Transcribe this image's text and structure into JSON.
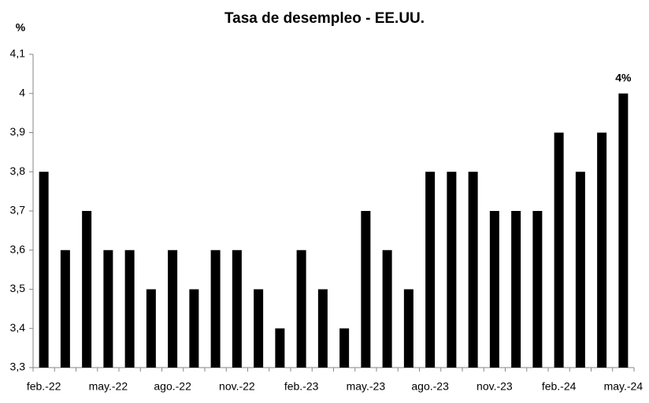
{
  "chart_data": {
    "type": "bar",
    "title": "Tasa de desempleo - EE.UU.",
    "y_label": "%",
    "categories": [
      "feb.-22",
      null,
      null,
      "may.-22",
      null,
      null,
      "ago.-22",
      null,
      null,
      "nov.-22",
      null,
      null,
      "feb.-23",
      null,
      null,
      "may.-23",
      null,
      null,
      "ago.-23",
      null,
      null,
      "nov.-23",
      null,
      null,
      "feb.-24",
      null,
      null,
      "may.-24"
    ],
    "values": [
      3.8,
      3.6,
      3.7,
      3.6,
      3.6,
      3.5,
      3.6,
      3.5,
      3.6,
      3.6,
      3.5,
      3.4,
      3.6,
      3.5,
      3.4,
      3.7,
      3.6,
      3.5,
      3.8,
      3.8,
      3.8,
      3.7,
      3.7,
      3.7,
      3.9,
      3.8,
      3.9,
      4
    ],
    "value_labels": [
      null,
      null,
      null,
      null,
      null,
      null,
      null,
      null,
      null,
      null,
      null,
      null,
      null,
      null,
      null,
      null,
      null,
      null,
      null,
      null,
      null,
      null,
      null,
      null,
      null,
      null,
      null,
      "4%"
    ],
    "color": "#000000",
    "ylim": [
      3.3,
      4.1
    ],
    "yticks": [
      {
        "value": 3.3,
        "label": "3,3"
      },
      {
        "value": 3.4,
        "label": "3,4"
      },
      {
        "value": 3.5,
        "label": "3,5"
      },
      {
        "value": 3.6,
        "label": "3,6"
      },
      {
        "value": 3.7,
        "label": "3,7"
      },
      {
        "value": 3.8,
        "label": "3,8"
      },
      {
        "value": 3.9,
        "label": "3,9"
      },
      4,
      {
        "value": 4.1,
        "label": "4,1"
      }
    ],
    "grid": false
  }
}
